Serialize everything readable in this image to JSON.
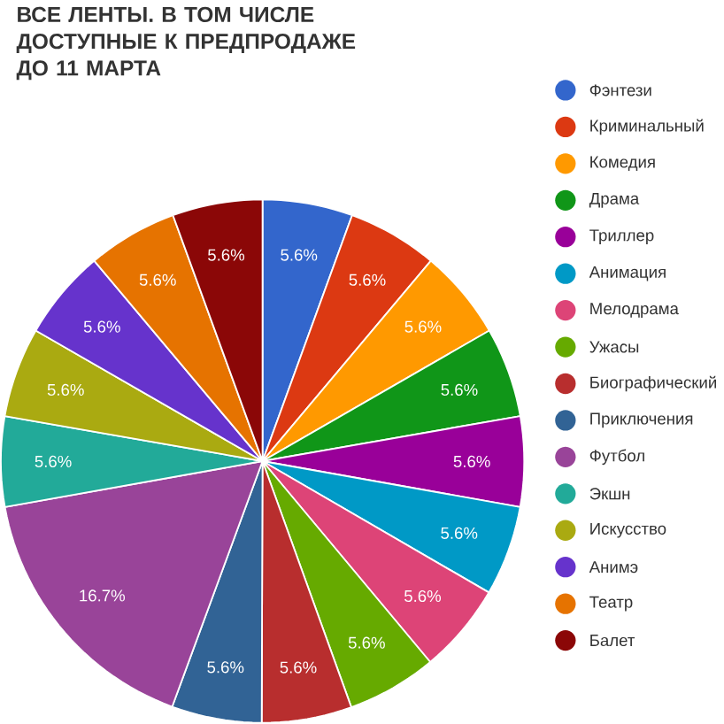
{
  "chart_data": {
    "type": "pie",
    "title": "ВСЕ ЛЕНТЫ. В ТОМ ЧИСЛЕ ДОСТУПНЫЕ К ПРЕДПРОДАЖЕ ДО 11 МАРТА",
    "categories": [
      "Фэнтези",
      "Криминальный",
      "Комедия",
      "Драма",
      "Триллер",
      "Анимация",
      "Мелодрама",
      "Ужасы",
      "Биографический",
      "Приключения",
      "Футбол",
      "Экшн",
      "Искусство",
      "Анимэ",
      "Театр",
      "Балет"
    ],
    "values": [
      5.6,
      5.6,
      5.6,
      5.6,
      5.6,
      5.6,
      5.6,
      5.6,
      5.6,
      5.6,
      16.7,
      5.6,
      5.6,
      5.6,
      5.6,
      5.6
    ],
    "value_labels": [
      "5.6%",
      "5.6%",
      "5.6%",
      "5.6%",
      "5.6%",
      "5.6%",
      "5.6%",
      "5.6%",
      "5.6%",
      "5.6%",
      "16.7%",
      "5.6%",
      "5.6%",
      "5.6%",
      "5.6%",
      "5.6%"
    ],
    "colors": [
      "#3366cc",
      "#dc3912",
      "#ff9900",
      "#109618",
      "#990099",
      "#0099c6",
      "#dd4477",
      "#66aa00",
      "#b82e2e",
      "#316395",
      "#994499",
      "#22aa99",
      "#aaaa11",
      "#6633cc",
      "#e67300",
      "#8b0707"
    ],
    "legend": "right"
  }
}
